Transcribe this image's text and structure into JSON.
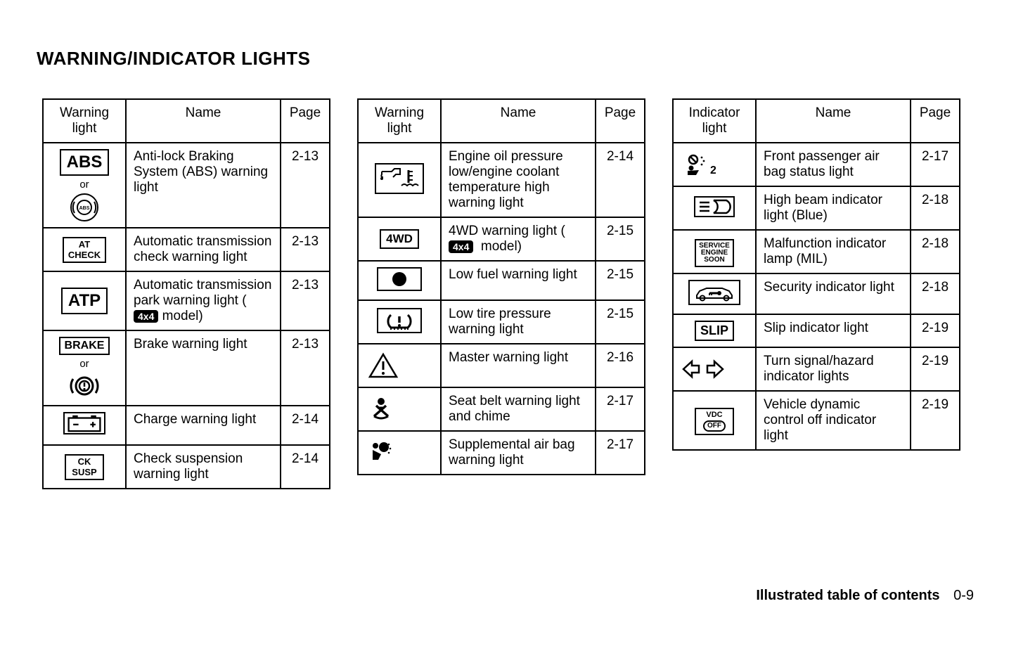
{
  "title": "WARNING/INDICATOR LIGHTS",
  "footer": {
    "label": "Illustrated table of contents",
    "page": "0-9"
  },
  "tables": [
    {
      "headers": {
        "icon": "Warning light",
        "name": "Name",
        "page": "Page"
      },
      "rows": [
        {
          "icon_key": "abs",
          "name_html": "Anti-lock Braking System (ABS) warning light",
          "page": "2-13"
        },
        {
          "icon_key": "at_check",
          "name_html": "Automatic transmission check warning light",
          "page": "2-13"
        },
        {
          "icon_key": "atp",
          "name_html": "Automatic transmission park warning light ( <span class=\"badge-4x4\">4x4</span> model)",
          "page": "2-13"
        },
        {
          "icon_key": "brake",
          "name_html": "Brake warning light",
          "page": "2-13"
        },
        {
          "icon_key": "battery",
          "name_html": "Charge warning light",
          "page": "2-14"
        },
        {
          "icon_key": "ck_susp",
          "name_html": "Check suspension warning light",
          "page": "2-14"
        }
      ]
    },
    {
      "headers": {
        "icon": "Warning light",
        "name": "Name",
        "page": "Page"
      },
      "rows": [
        {
          "icon_key": "oil_temp",
          "name_html": "Engine oil pressure low/engine coolant temperature high warning light",
          "page": "2-14"
        },
        {
          "icon_key": "4wd",
          "name_html": "4WD warning light ( <span class=\"badge-4x4\">4x4</span> &nbsp;model)",
          "page": "2-15"
        },
        {
          "icon_key": "fuel",
          "name_html": "Low fuel warning light",
          "page": "2-15"
        },
        {
          "icon_key": "tpms",
          "name_html": "Low tire pressure warning light",
          "page": "2-15"
        },
        {
          "icon_key": "master",
          "name_html": "Master warning light",
          "page": "2-16"
        },
        {
          "icon_key": "seatbelt",
          "name_html": "Seat belt warning light and chime",
          "page": "2-17"
        },
        {
          "icon_key": "airbag",
          "name_html": "Supplemental air bag warning light",
          "page": "2-17"
        }
      ]
    },
    {
      "headers": {
        "icon": "Indicator light",
        "name": "Name",
        "page": "Page"
      },
      "rows": [
        {
          "icon_key": "pass_airbag",
          "name_html": "Front passenger air bag status light",
          "page": "2-17"
        },
        {
          "icon_key": "high_beam",
          "name_html": "High beam indicator light (Blue)",
          "page": "2-18"
        },
        {
          "icon_key": "ses",
          "name_html": "Malfunction indicator lamp (MIL)",
          "page": "2-18"
        },
        {
          "icon_key": "security",
          "name_html": "Security indicator light",
          "page": "2-18"
        },
        {
          "icon_key": "slip",
          "name_html": "Slip indicator light",
          "page": "2-19"
        },
        {
          "icon_key": "turn",
          "name_html": "Turn signal/hazard indicator lights",
          "page": "2-19"
        },
        {
          "icon_key": "vdc_off",
          "name_html": "Vehicle dynamic control off indicator light",
          "page": "2-19"
        }
      ]
    }
  ],
  "icon_labels": {
    "abs_top": "ABS",
    "abs_inner": "ABS",
    "at_check_l1": "AT",
    "at_check_l2": "CHECK",
    "atp": "ATP",
    "brake": "BRAKE",
    "ck_susp_l1": "CK",
    "ck_susp_l2": "SUSP",
    "4wd": "4WD",
    "ses_l1": "SERVICE",
    "ses_l2": "ENGINE",
    "ses_l3": "SOON",
    "slip": "SLIP",
    "vdc_top": "VDC",
    "vdc_bot": "OFF",
    "or": "or"
  }
}
